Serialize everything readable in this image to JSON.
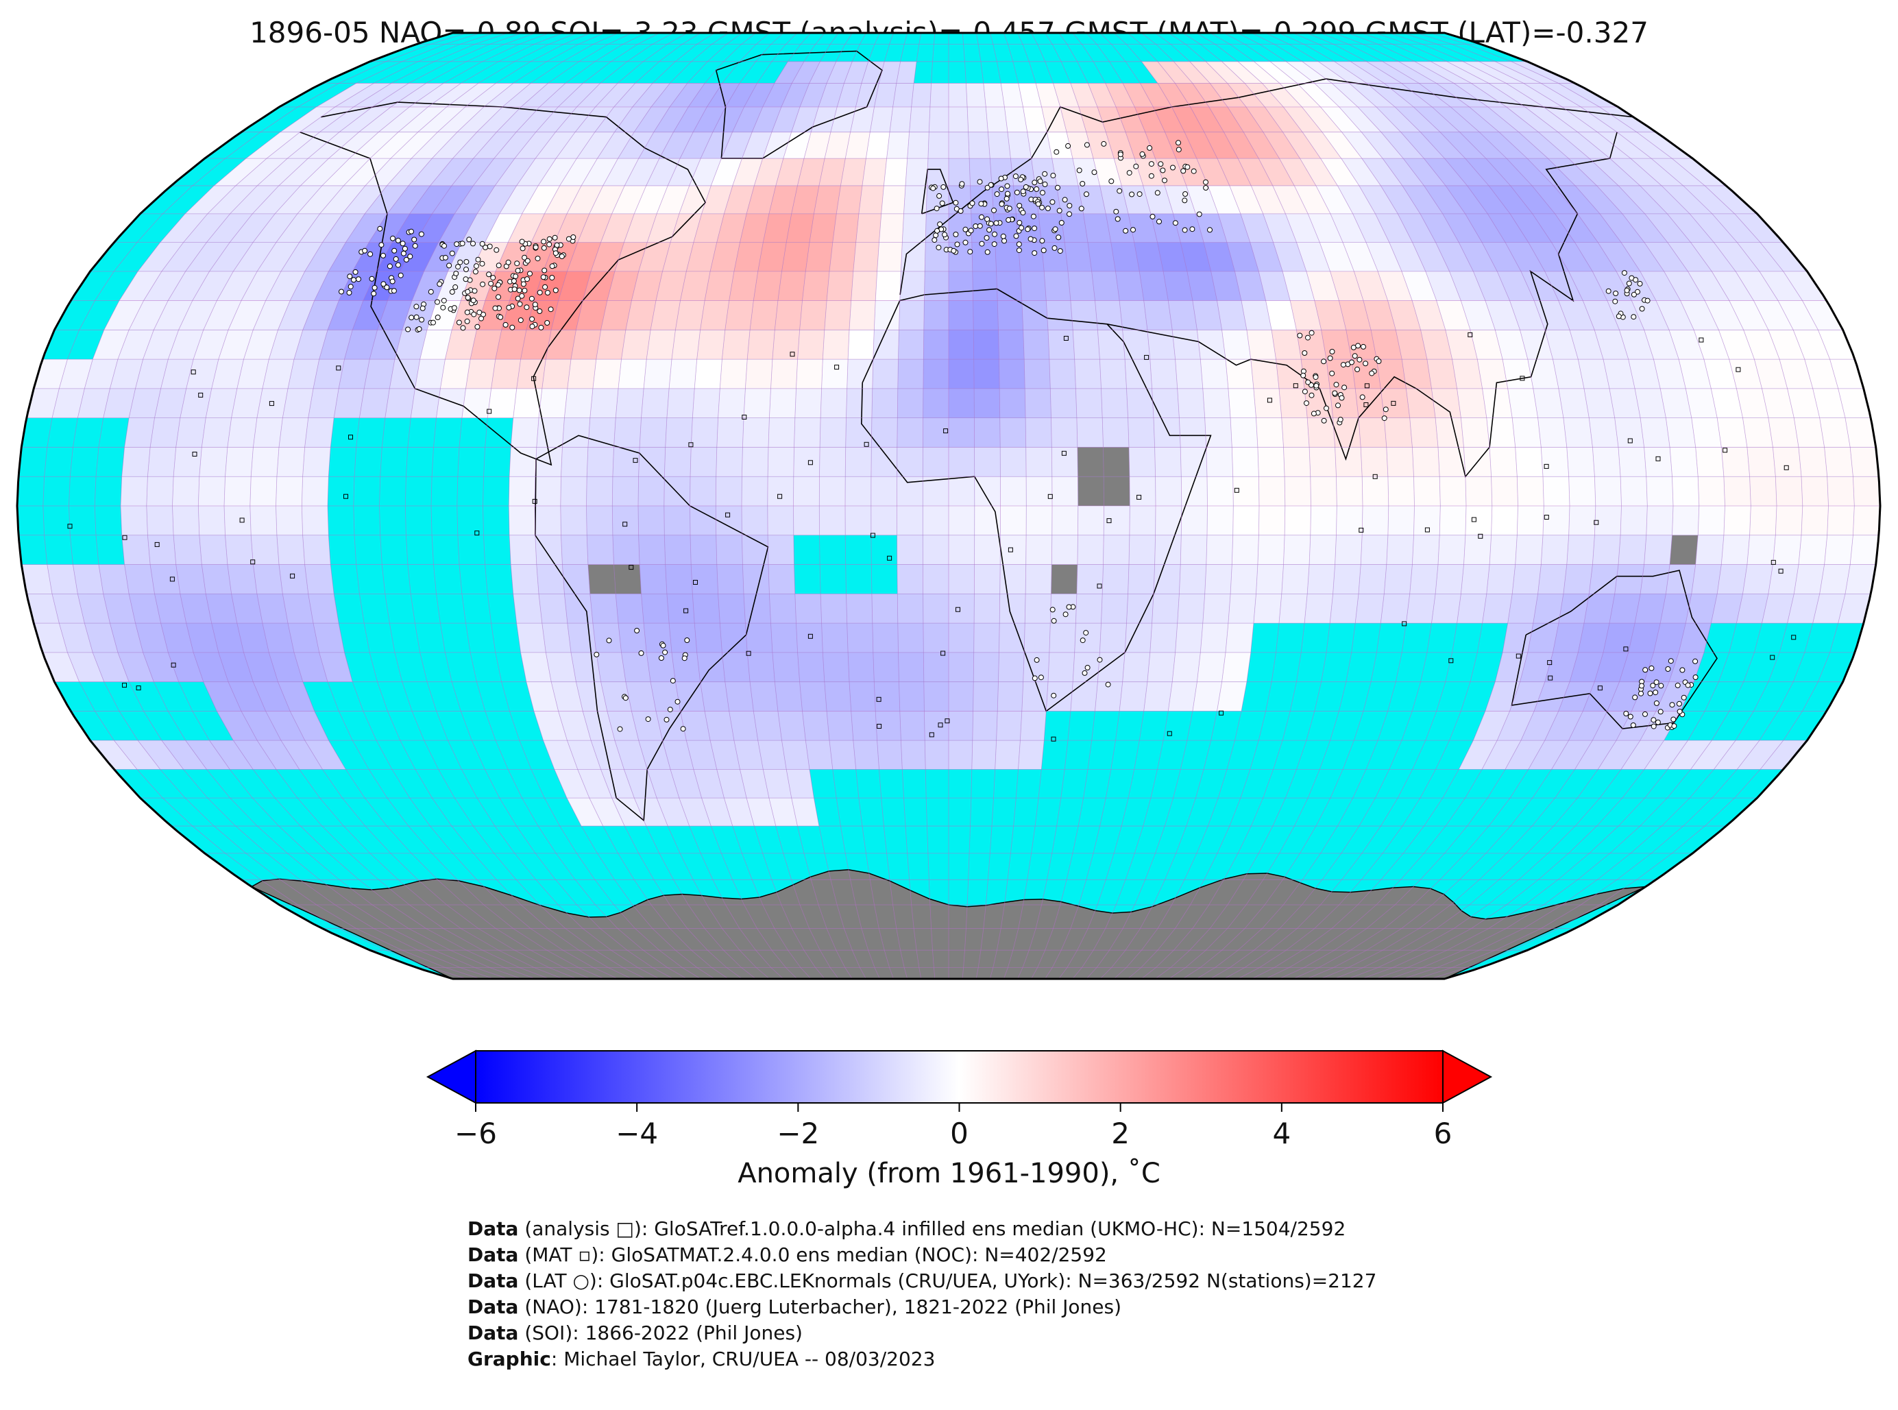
{
  "title": "1896-05 NAO=-0.89 SOI=-3.23 GMST (analysis)=-0.457 GMST (MAT)=-0.299 GMST (LAT)=-0.327",
  "colors": {
    "ocean_missing": "#00f2f2",
    "no_data_land": "#7f7f7f",
    "cold_max": "#0000ff",
    "warm_max": "#ff0000",
    "neutral": "#ffffff",
    "gridline": "#b46ec8"
  },
  "colorbar": {
    "ticks": [
      "−6",
      "−4",
      "−2",
      "0",
      "2",
      "4",
      "6"
    ],
    "tick_values": [
      -6,
      -4,
      -2,
      0,
      2,
      4,
      6
    ],
    "range": [
      -6,
      6
    ],
    "label": "Anomaly (from 1961-1990), ˚C"
  },
  "credits": [
    {
      "key": "Data",
      "text": " (analysis □): GloSATref.1.0.0.0-alpha.4 infilled ens median (UKMO-HC): N=1504/2592"
    },
    {
      "key": "Data",
      "text": " (MAT ▫): GloSATMAT.2.4.0.0 ens median (NOC): N=402/2592"
    },
    {
      "key": "Data",
      "text": " (LAT ○): GloSAT.p04c.EBC.LEKnormals (CRU/UEA, UYork): N=363/2592 N(stations)=2127"
    },
    {
      "key": "Data",
      "text": " (NAO): 1781-1820 (Juerg Luterbacher), 1821-2022 (Phil Jones)"
    },
    {
      "key": "Data",
      "text": " (SOI): 1866-2022 (Phil Jones)"
    },
    {
      "key": "Graphic",
      "text": ": Michael Taylor, CRU/UEA -- 08/03/2023"
    }
  ],
  "map_data": {
    "projection": "Robinson",
    "grid_resolution_deg": 5,
    "anomaly_regions": [
      {
        "name": "Western North America",
        "lon": [
          -125,
          -105
        ],
        "lat": [
          30,
          50
        ],
        "anomaly": -3.5
      },
      {
        "name": "Eastern United States",
        "lon": [
          -100,
          -70
        ],
        "lat": [
          28,
          45
        ],
        "anomaly": 3.0
      },
      {
        "name": "North Atlantic",
        "lon": [
          -50,
          -15
        ],
        "lat": [
          35,
          60
        ],
        "anomaly": 2.5
      },
      {
        "name": "Greenland / Baffin",
        "lon": [
          -75,
          -30
        ],
        "lat": [
          60,
          80
        ],
        "anomaly": -2.0
      },
      {
        "name": "Europe",
        "lon": [
          -5,
          30
        ],
        "lat": [
          40,
          60
        ],
        "anomaly": -2.0
      },
      {
        "name": "Northern Russia",
        "lon": [
          40,
          90
        ],
        "lat": [
          55,
          75
        ],
        "anomaly": 2.5
      },
      {
        "name": "Central Asia",
        "lon": [
          40,
          70
        ],
        "lat": [
          35,
          50
        ],
        "anomaly": -2.5
      },
      {
        "name": "India / Tibet",
        "lon": [
          70,
          95
        ],
        "lat": [
          15,
          40
        ],
        "anomaly": 2.0
      },
      {
        "name": "Siberia / East Asia",
        "lon": [
          95,
          150
        ],
        "lat": [
          40,
          65
        ],
        "anomaly": -2.0
      },
      {
        "name": "North Africa",
        "lon": [
          -5,
          15
        ],
        "lat": [
          15,
          35
        ],
        "anomaly": -2.5
      },
      {
        "name": "South America",
        "lon": [
          -70,
          -35
        ],
        "lat": [
          -30,
          0
        ],
        "anomaly": -1.5
      },
      {
        "name": "South Atlantic",
        "lon": [
          -35,
          15
        ],
        "lat": [
          -40,
          -20
        ],
        "anomaly": -1.5
      },
      {
        "name": "Australia",
        "lon": [
          115,
          155
        ],
        "lat": [
          -35,
          -15
        ],
        "anomaly": -2.0
      },
      {
        "name": "South Pacific",
        "lon": [
          -160,
          -120
        ],
        "lat": [
          -40,
          -15
        ],
        "anomaly": -2.0
      },
      {
        "name": "Tropical Pacific",
        "lon": [
          160,
          280
        ],
        "lat": [
          -10,
          30
        ],
        "anomaly": 0.5
      }
    ]
  }
}
